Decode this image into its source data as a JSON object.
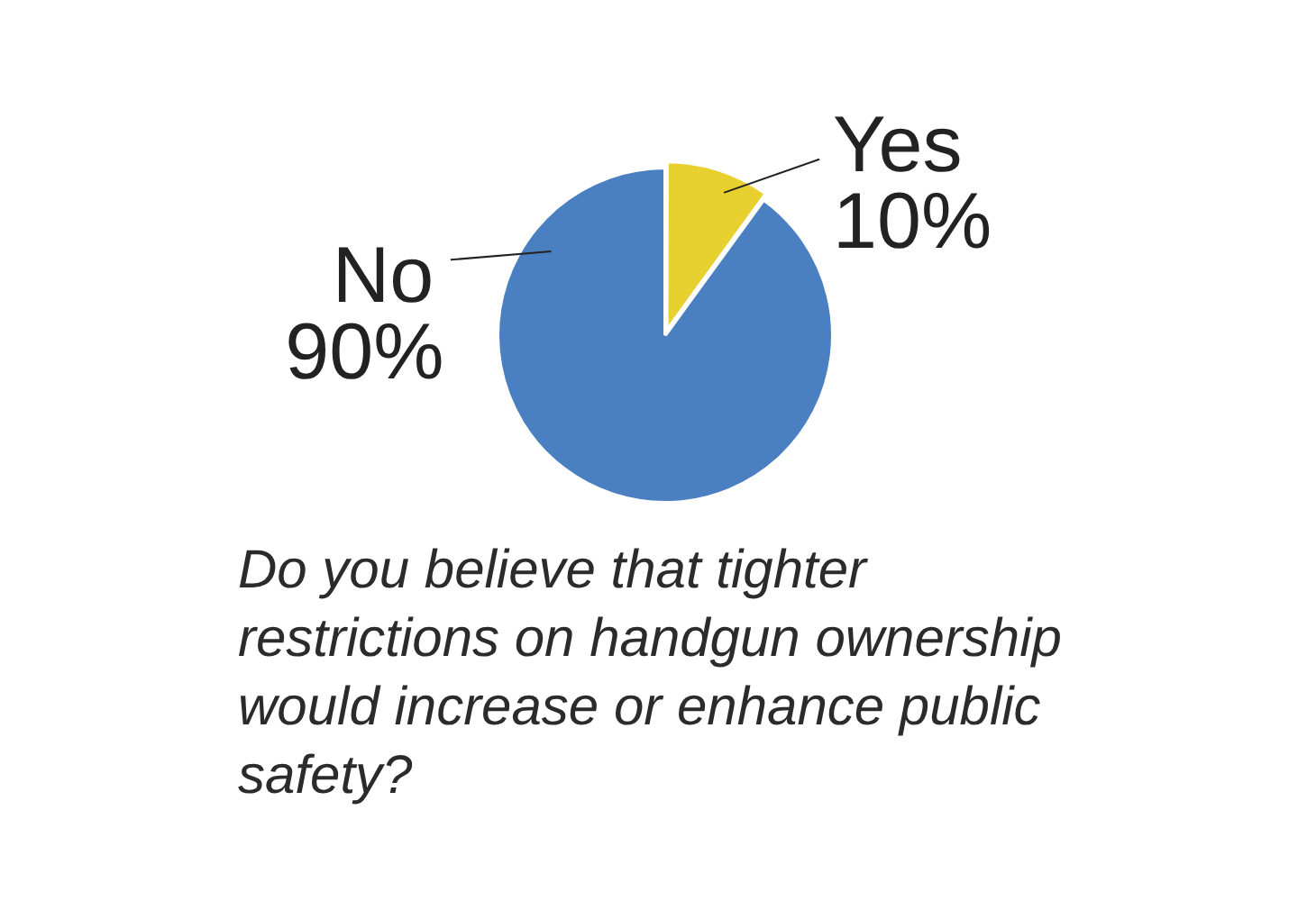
{
  "chart_data": {
    "type": "pie",
    "title": "Do you believe that tighter restrictions on handgun ownership would increase or enhance public safety?",
    "categories": [
      "Yes",
      "No"
    ],
    "values": [
      10,
      90
    ],
    "colors": [
      "#e8d02e",
      "#4a7fc1"
    ],
    "value_labels": [
      "10%",
      "90%"
    ],
    "legend": false
  }
}
